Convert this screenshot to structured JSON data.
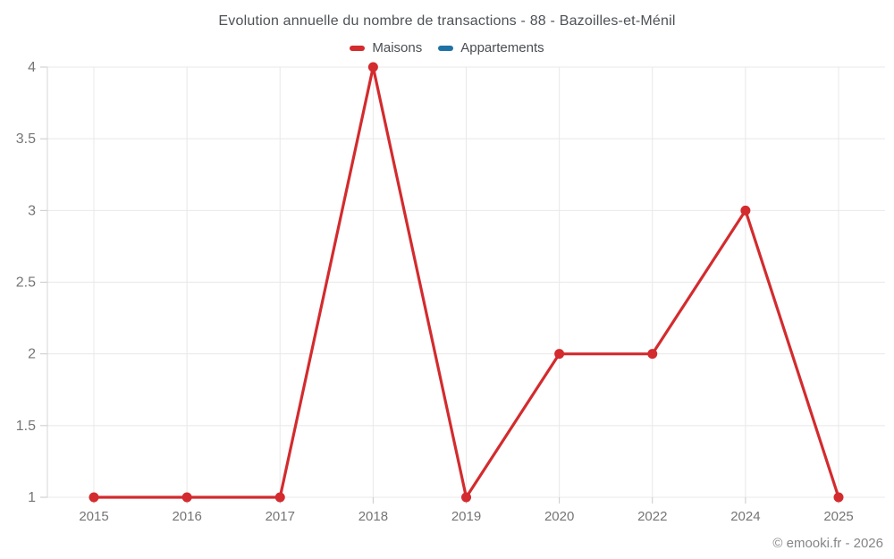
{
  "chart_data": {
    "type": "line",
    "title": "Evolution annuelle du nombre de transactions - 88 - Bazoilles-et-Ménil",
    "categories": [
      "2015",
      "2016",
      "2017",
      "2018",
      "2019",
      "2020",
      "2022",
      "2024",
      "2025"
    ],
    "series": [
      {
        "name": "Maisons",
        "color": "#d32b2e",
        "values": [
          1,
          1,
          1,
          4,
          1,
          2,
          2,
          3,
          1
        ]
      },
      {
        "name": "Appartements",
        "color": "#1f72a6",
        "values": []
      }
    ],
    "ylim": [
      1,
      4
    ],
    "yticks": [
      1,
      1.5,
      2,
      2.5,
      3,
      3.5,
      4
    ],
    "grid": true,
    "legend_position": "top",
    "marker": "circle",
    "watermark": "© emooki.fr - 2026"
  },
  "colors": {
    "gridline": "#e8e8e8",
    "tick": "#c9c9c9",
    "axis_line": "#d6d6d6",
    "axis_text": "#757575"
  }
}
